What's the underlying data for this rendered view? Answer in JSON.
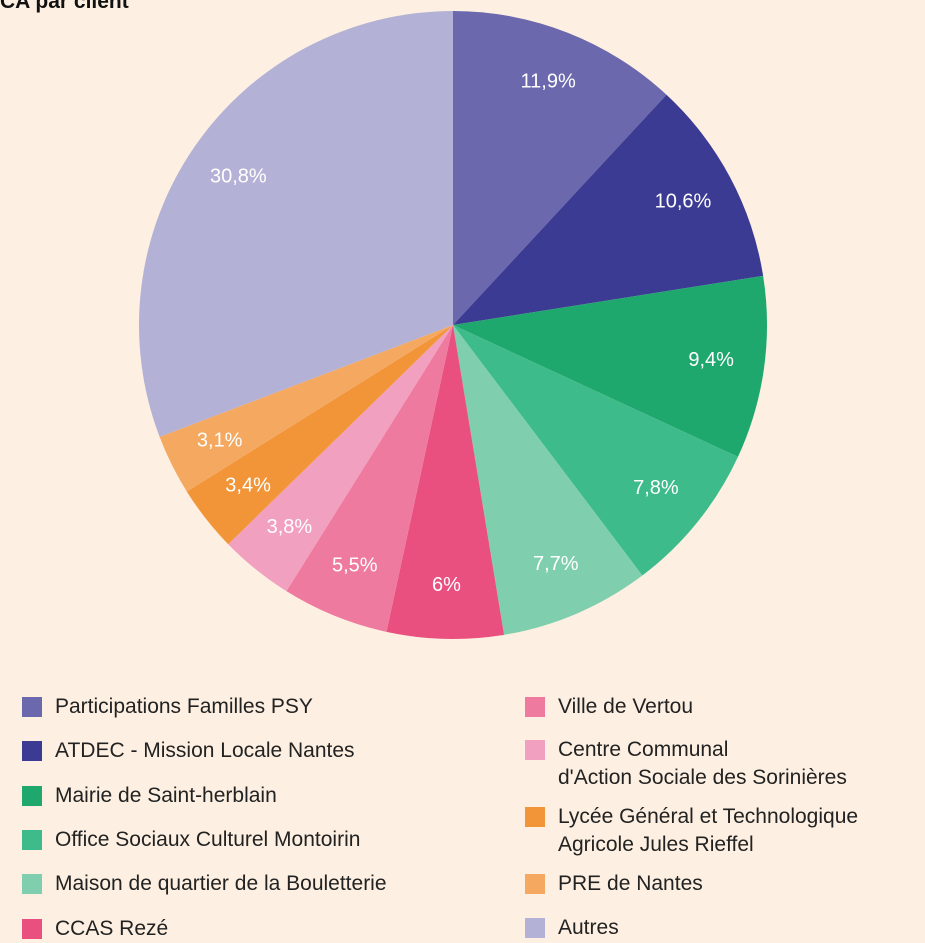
{
  "chart_data": {
    "type": "pie",
    "title": "CA par client",
    "categories": [
      "Participations Familles PSY",
      "ATDEC - Mission Locale Nantes",
      "Mairie de Saint-herblain",
      "Office Sociaux Culturel Montoirin",
      "Maison de quartier de la Bouletterie",
      "CCAS Rezé",
      "Ville de Vertou",
      "Centre Communal\nd'Action Sociale des Sorinières",
      "Lycée Général et Technologique\nAgricole Jules Rieffel",
      "PRE de Nantes",
      "Autres"
    ],
    "values": [
      11.9,
      10.6,
      9.4,
      7.8,
      7.7,
      6,
      5.5,
      3.8,
      3.4,
      3.1,
      30.8
    ],
    "value_labels": [
      "11,9%",
      "10,6%",
      "9,4%",
      "7,8%",
      "7,7%",
      "6%",
      "5,5%",
      "3,8%",
      "3,4%",
      "3,1%",
      "30,8%"
    ],
    "colors": [
      "#6b68ad",
      "#3b3b93",
      "#1fa86e",
      "#3dbb8a",
      "#7fcfaf",
      "#e9507f",
      "#ee7aa0",
      "#f2a0bf",
      "#f29539",
      "#f5a860",
      "#b3b2d6"
    ]
  }
}
